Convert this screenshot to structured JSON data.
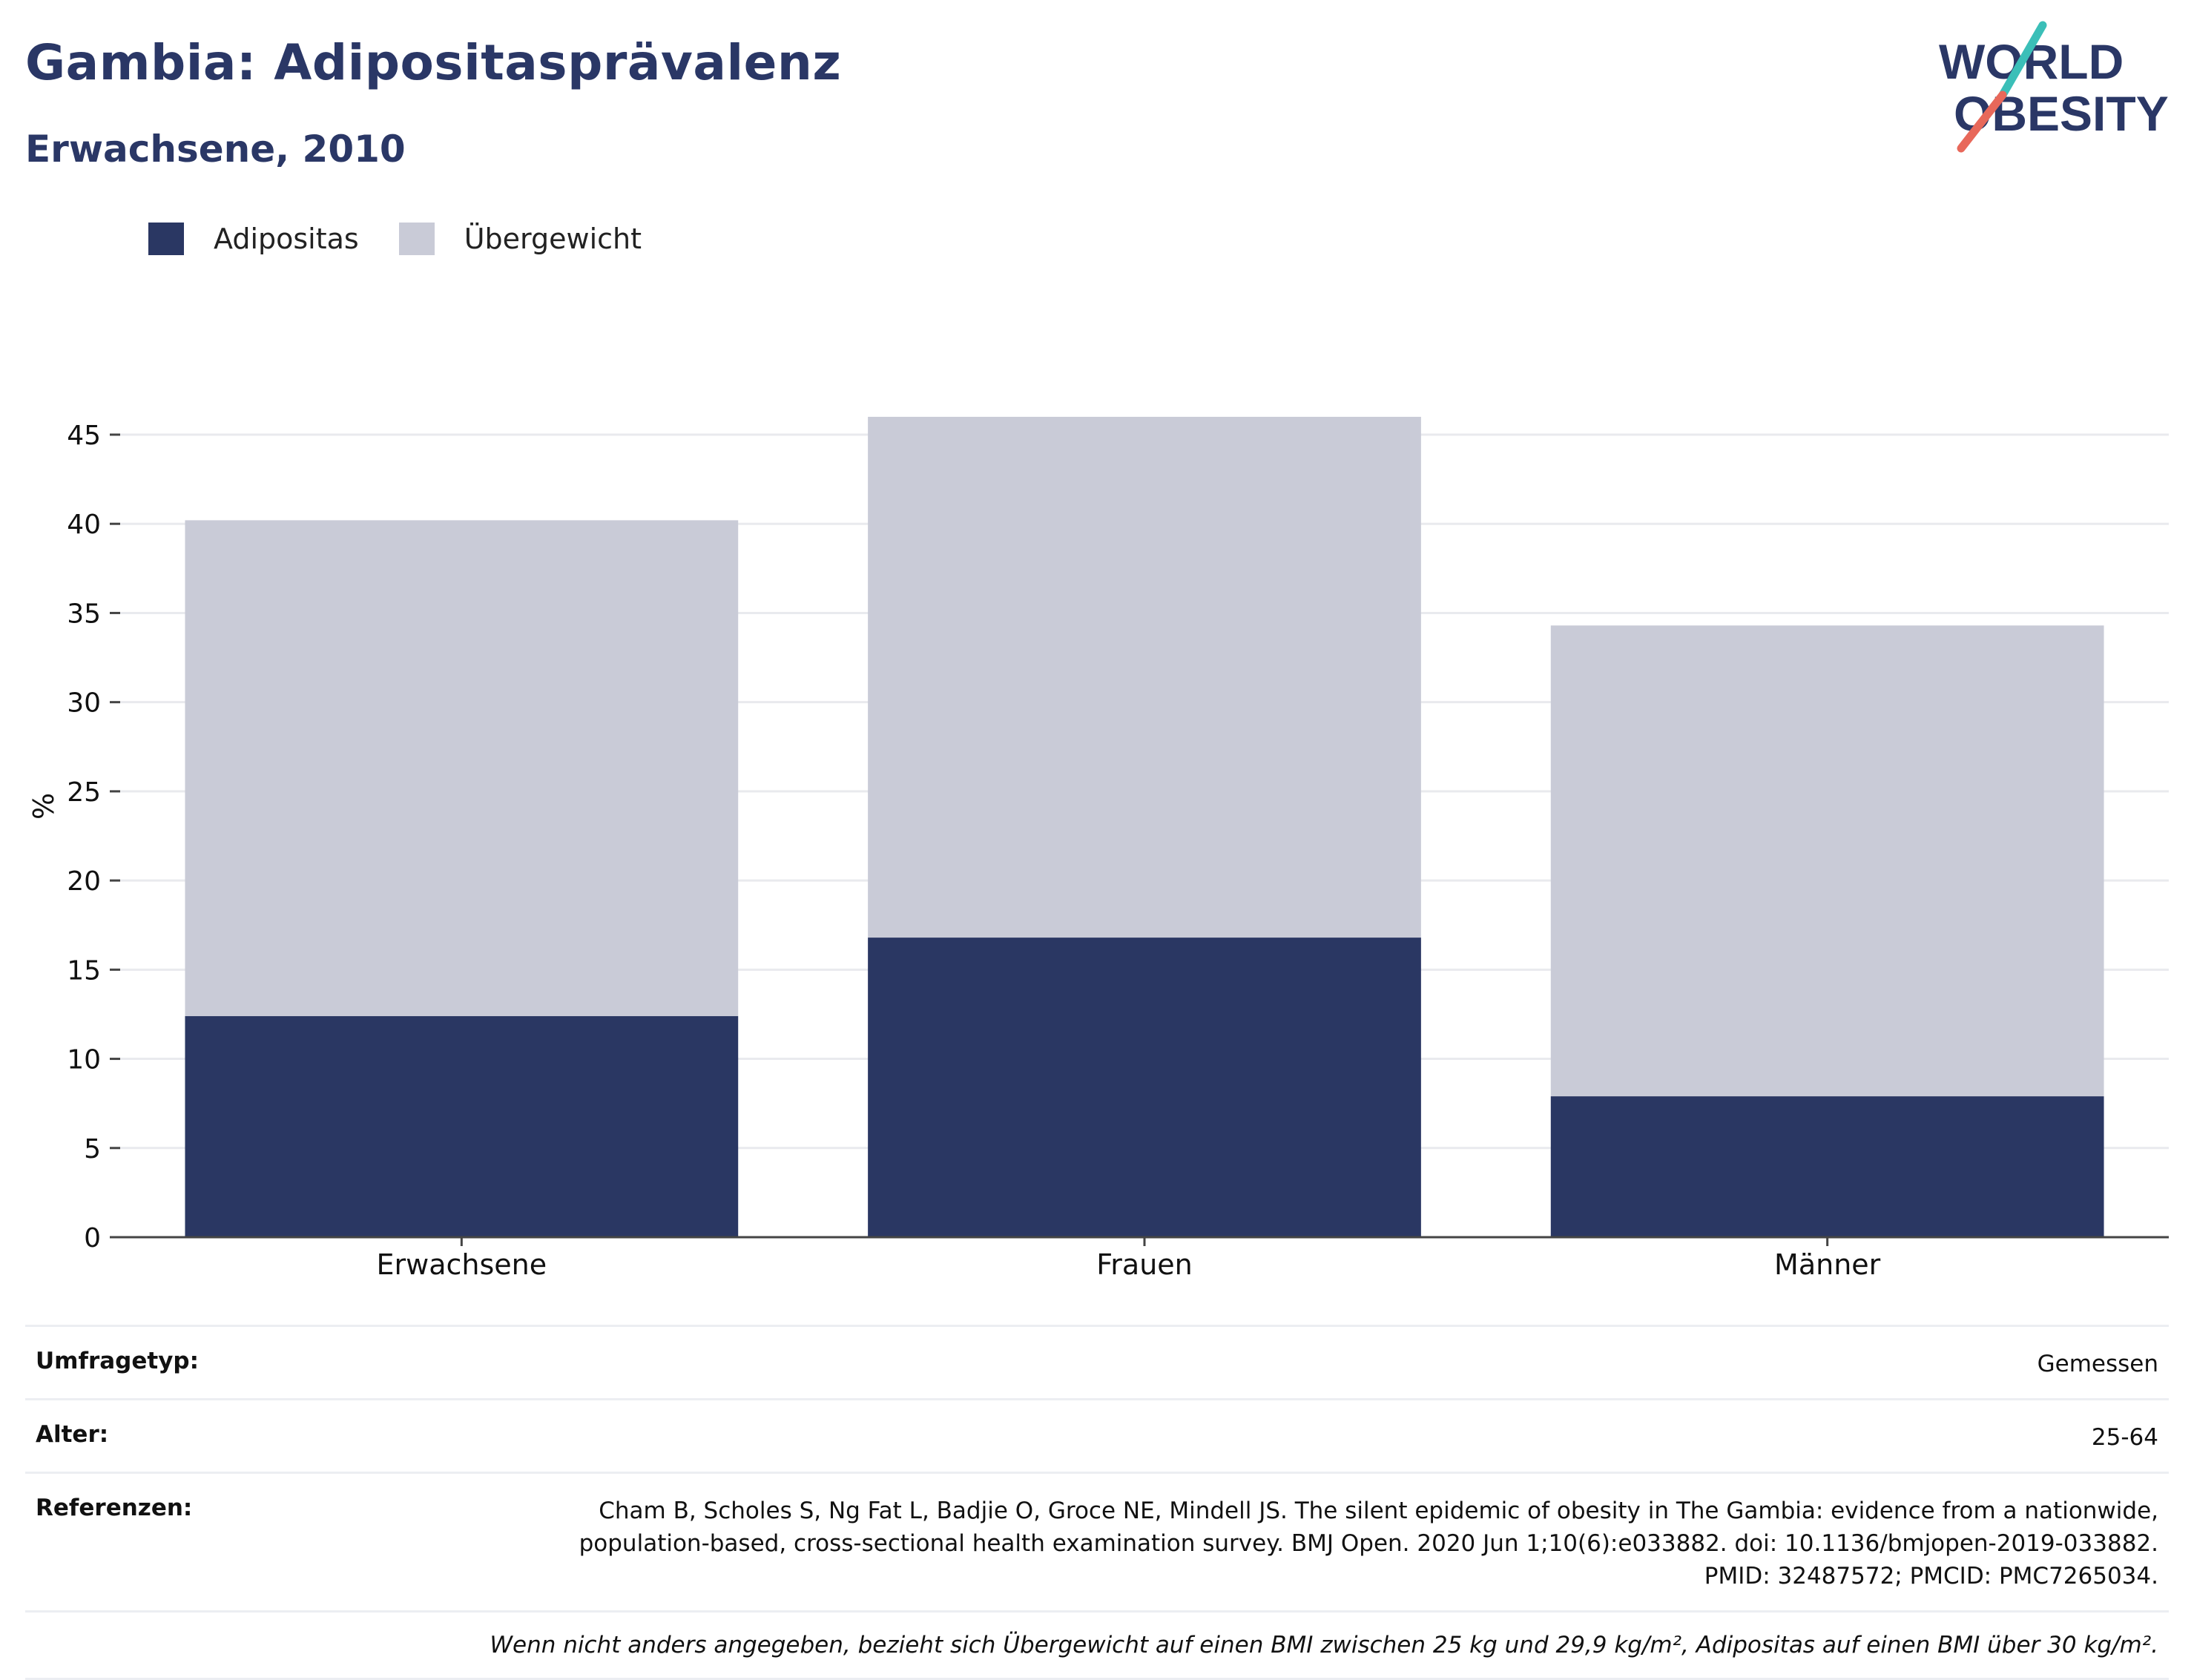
{
  "header": {
    "title": "Gambia: Adipositasprävalenz",
    "subtitle": "Erwachsene, 2010"
  },
  "logo": {
    "line1": "WORLD",
    "line2": "OBESITY",
    "colors": {
      "text": "#2a3766",
      "slash_top": "#3bbfb8",
      "slash_bottom": "#e8685a"
    }
  },
  "legend": [
    {
      "label": "Adipositas",
      "color": "#2a3763"
    },
    {
      "label": "Übergewicht",
      "color": "#c9cbd7"
    }
  ],
  "chart_data": {
    "type": "bar",
    "stacked": true,
    "categories": [
      "Erwachsene",
      "Frauen",
      "Männer"
    ],
    "series": [
      {
        "name": "Adipositas",
        "values": [
          12.4,
          16.8,
          7.9
        ],
        "color": "#2a3763"
      },
      {
        "name": "Übergewicht",
        "values": [
          27.8,
          29.2,
          26.4
        ],
        "color": "#c9cbd7"
      }
    ],
    "ylabel": "%",
    "ylim": [
      0,
      45
    ],
    "yticks": [
      0,
      5,
      10,
      15,
      20,
      25,
      30,
      35,
      40,
      45
    ],
    "grid": true,
    "legend_position": "top-left"
  },
  "info": {
    "survey_label": "Umfragetyp:",
    "survey_value": "Gemessen",
    "age_label": "Alter:",
    "age_value": "25-64",
    "references_label": "Referenzen:",
    "references_value": "Cham B, Scholes S, Ng Fat L, Badjie O, Groce NE, Mindell JS. The silent epidemic of obesity in The Gambia: evidence from a nationwide, population-based, cross-sectional health examination survey. BMJ Open. 2020 Jun 1;10(6):e033882. doi: 10.1136/bmjopen-2019-033882. PMID: 32487572; PMCID: PMC7265034.",
    "note": "Wenn nicht anders angegeben, bezieht sich Übergewicht auf einen BMI zwischen 25 kg und 29,9 kg/m², Adipositas auf einen BMI über 30 kg/m²."
  }
}
